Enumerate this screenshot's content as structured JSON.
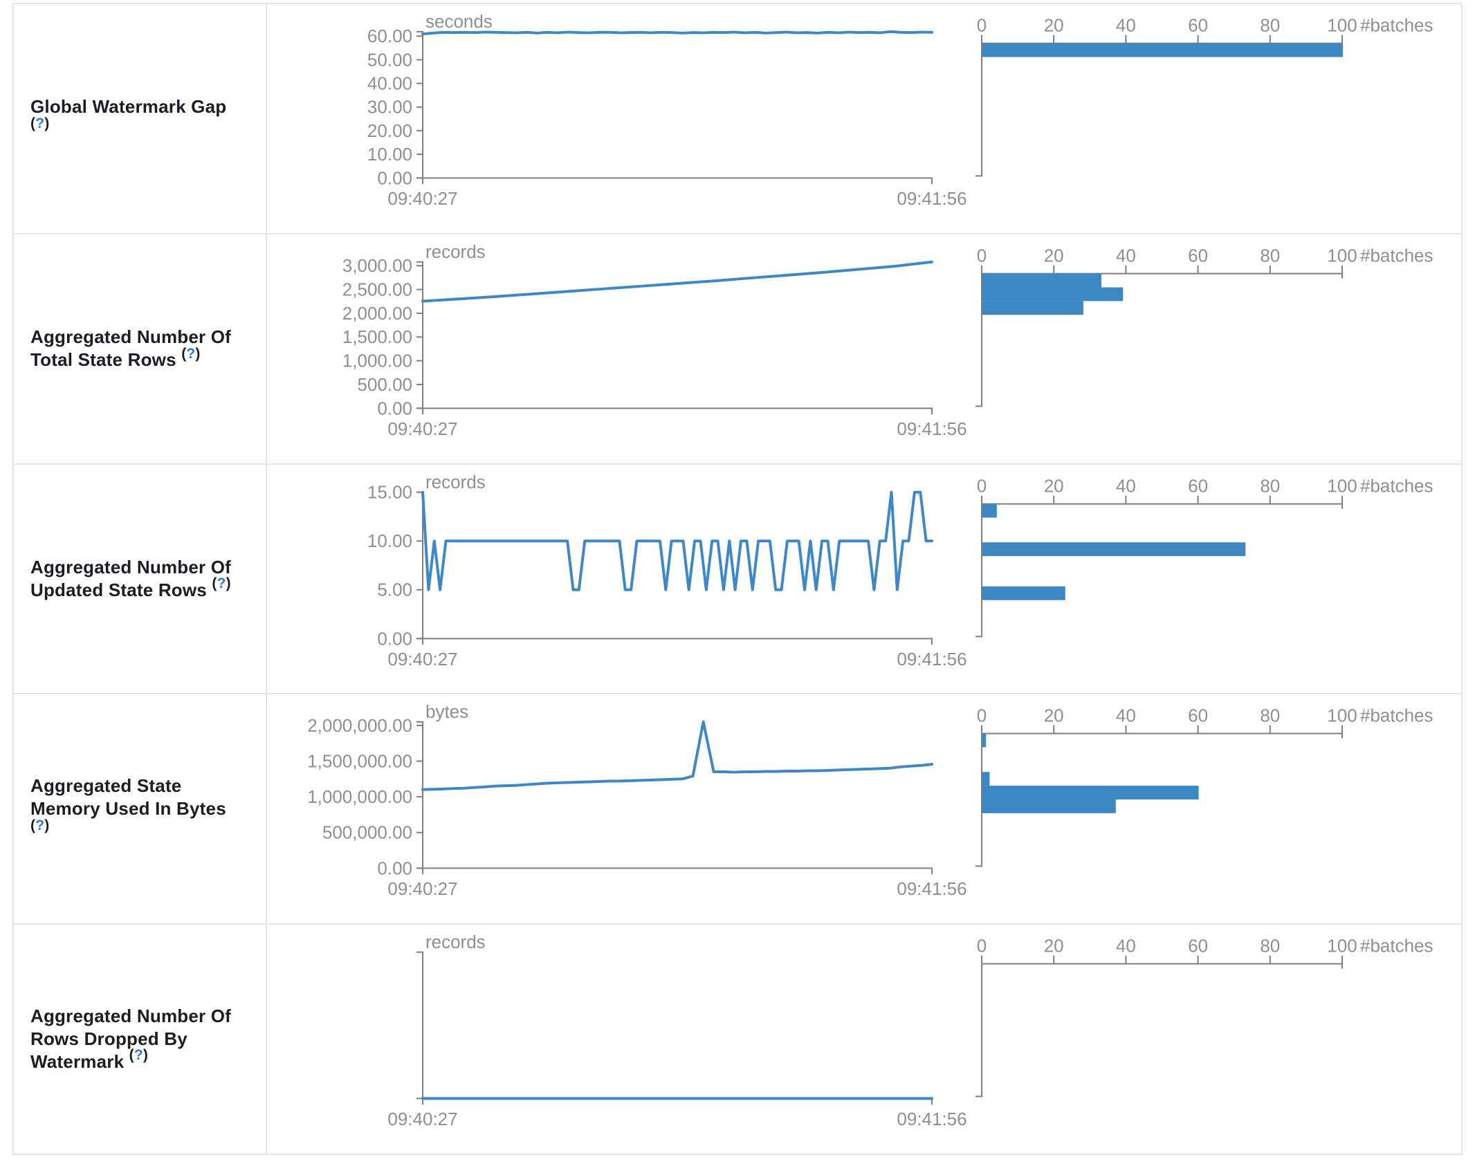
{
  "app": "Spark Structured Streaming Statistics",
  "help_marker": {
    "open": "(",
    "q": "?",
    "close": ")"
  },
  "times": {
    "start": "09:40:27",
    "end": "09:41:56"
  },
  "histogram_axis": {
    "tick_labels": [
      "0",
      "20",
      "40",
      "60",
      "80",
      "100"
    ],
    "tick_values": [
      0,
      20,
      40,
      60,
      80,
      100
    ],
    "unit_label": "#batches",
    "max": 100
  },
  "colors": {
    "accent_blue": "#3d87c3",
    "line_blue": "#3e88c8",
    "axis_gray": "#7f7f7f",
    "tick_text_gray": "#8d8f91",
    "border_gray": "#e4e7ea",
    "label_dark": "#1a1d21",
    "help_blue": "#3178d6"
  },
  "rows": [
    {
      "label_lines": [
        {
          "text": "Global Watermark Gap",
          "help": false
        },
        {
          "text": "",
          "help": true
        }
      ],
      "timeline": {
        "unit": "seconds",
        "type": "line",
        "vmax": 61.9,
        "xlabel_start": "09:40:27",
        "xlabel_end": "09:41:56",
        "y_ticks": [
          {
            "label": "60.00",
            "value": 60
          },
          {
            "label": "50.00",
            "value": 50
          },
          {
            "label": "40.00",
            "value": 40
          },
          {
            "label": "30.00",
            "value": 30
          },
          {
            "label": "20.00",
            "value": 20
          },
          {
            "label": "10.00",
            "value": 10
          },
          {
            "label": "0.00",
            "value": 0
          }
        ],
        "values": [
          60.9,
          61.3,
          61.6,
          61.5,
          61.6,
          61.5,
          61.7,
          61.6,
          61.5,
          61.4,
          61.6,
          61.3,
          61.6,
          61.4,
          61.7,
          61.5,
          61.4,
          61.6,
          61.6,
          61.4,
          61.5,
          61.6,
          61.4,
          61.6,
          61.5,
          61.3,
          61.5,
          61.4,
          61.6,
          61.5,
          61.7,
          61.4,
          61.6,
          61.3,
          61.5,
          61.7,
          61.4,
          61.5,
          61.3,
          61.6,
          61.4,
          61.7,
          61.5,
          61.6,
          61.4,
          61.9,
          61.6,
          61.5,
          61.7,
          61.6
        ]
      },
      "histogram": {
        "type": "bar",
        "bars": [
          {
            "count": 100,
            "y_offset": 57
          }
        ]
      }
    },
    {
      "label_lines": [
        {
          "text": "Aggregated Number Of",
          "help": false
        },
        {
          "text": "Total State Rows",
          "help": true
        }
      ],
      "timeline": {
        "unit": "records",
        "type": "line",
        "vmax": 3080,
        "xlabel_start": "09:40:27",
        "xlabel_end": "09:41:56",
        "y_ticks": [
          {
            "label": "3,000.00",
            "value": 3000
          },
          {
            "label": "2,500.00",
            "value": 2500
          },
          {
            "label": "2,000.00",
            "value": 2000
          },
          {
            "label": "1,500.00",
            "value": 1500
          },
          {
            "label": "1,000.00",
            "value": 1000
          },
          {
            "label": "500.00",
            "value": 500
          },
          {
            "label": "0.00",
            "value": 0
          }
        ],
        "values": [
          2255,
          2300,
          2350,
          2405,
          2460,
          2515,
          2570,
          2625,
          2680,
          2740,
          2800,
          2860,
          2925,
          2990,
          3080
        ]
      },
      "histogram": {
        "type": "bar",
        "bars": [
          {
            "count": 33,
            "y_offset": 57
          },
          {
            "count": 39,
            "y_offset": 77
          },
          {
            "count": 28,
            "y_offset": 97
          }
        ]
      }
    },
    {
      "label_lines": [
        {
          "text": "Aggregated Number Of",
          "help": false
        },
        {
          "text": "Updated State Rows",
          "help": true
        }
      ],
      "timeline": {
        "unit": "records",
        "type": "line",
        "vmax": 15,
        "xlabel_start": "09:40:27",
        "xlabel_end": "09:41:56",
        "y_ticks": [
          {
            "label": "15.00",
            "value": 15
          },
          {
            "label": "10.00",
            "value": 10
          },
          {
            "label": "5.00",
            "value": 5
          },
          {
            "label": "0.00",
            "value": 0
          }
        ],
        "values": [
          15,
          5,
          10,
          5,
          10,
          10,
          10,
          10,
          10,
          10,
          10,
          10,
          10,
          10,
          10,
          10,
          10,
          10,
          10,
          10,
          10,
          10,
          10,
          10,
          10,
          10,
          5,
          5,
          10,
          10,
          10,
          10,
          10,
          10,
          10,
          5,
          5,
          10,
          10,
          10,
          10,
          10,
          5,
          10,
          10,
          10,
          5,
          10,
          10,
          5,
          10,
          10,
          5,
          10,
          5,
          10,
          10,
          5,
          10,
          10,
          10,
          5,
          5,
          10,
          10,
          10,
          5,
          10,
          5,
          10,
          10,
          5,
          10,
          10,
          10,
          10,
          10,
          10,
          5,
          10,
          10,
          15,
          5,
          10,
          10,
          15,
          15,
          10,
          10
        ]
      },
      "histogram": {
        "type": "bar",
        "bars": [
          {
            "count": 4,
            "y_offset": 57
          },
          {
            "count": 73,
            "y_offset": 113
          },
          {
            "count": 23,
            "y_offset": 177
          }
        ]
      }
    },
    {
      "label_lines": [
        {
          "text": "Aggregated State",
          "help": false
        },
        {
          "text": "Memory Used In Bytes",
          "help": false
        },
        {
          "text": "",
          "help": true
        }
      ],
      "timeline": {
        "unit": "bytes",
        "type": "line",
        "vmax": 2050000,
        "xlabel_start": "09:40:27",
        "xlabel_end": "09:41:56",
        "y_ticks": [
          {
            "label": "2,000,000.00",
            "value": 2000000
          },
          {
            "label": "1,500,000.00",
            "value": 1500000
          },
          {
            "label": "1,000,000.00",
            "value": 1000000
          },
          {
            "label": "500,000.00",
            "value": 500000
          },
          {
            "label": "0.00",
            "value": 0
          }
        ],
        "values": [
          1100000,
          1105000,
          1110000,
          1115000,
          1120000,
          1130000,
          1140000,
          1150000,
          1155000,
          1160000,
          1170000,
          1180000,
          1190000,
          1195000,
          1200000,
          1205000,
          1210000,
          1215000,
          1220000,
          1220000,
          1225000,
          1230000,
          1235000,
          1240000,
          1245000,
          1250000,
          1290000,
          2050000,
          1350000,
          1350000,
          1345000,
          1350000,
          1350000,
          1355000,
          1355000,
          1360000,
          1360000,
          1365000,
          1365000,
          1370000,
          1375000,
          1380000,
          1385000,
          1390000,
          1395000,
          1400000,
          1420000,
          1430000,
          1440000,
          1455000
        ]
      },
      "histogram": {
        "type": "bar",
        "bars": [
          {
            "count": 1,
            "y_offset": 57
          },
          {
            "count": 2,
            "y_offset": 113
          },
          {
            "count": 60,
            "y_offset": 133
          },
          {
            "count": 37,
            "y_offset": 153
          }
        ]
      }
    },
    {
      "label_lines": [
        {
          "text": "Aggregated Number Of",
          "help": false
        },
        {
          "text": "Rows Dropped By",
          "help": false
        },
        {
          "text": "Watermark",
          "help": true
        }
      ],
      "timeline": {
        "unit": "records",
        "type": "line",
        "vmax": 1,
        "xlabel_start": "09:40:27",
        "xlabel_end": "09:41:56",
        "y_ticks": [],
        "values": [
          0,
          0
        ]
      },
      "histogram": {
        "type": "bar",
        "bars": []
      }
    }
  ]
}
